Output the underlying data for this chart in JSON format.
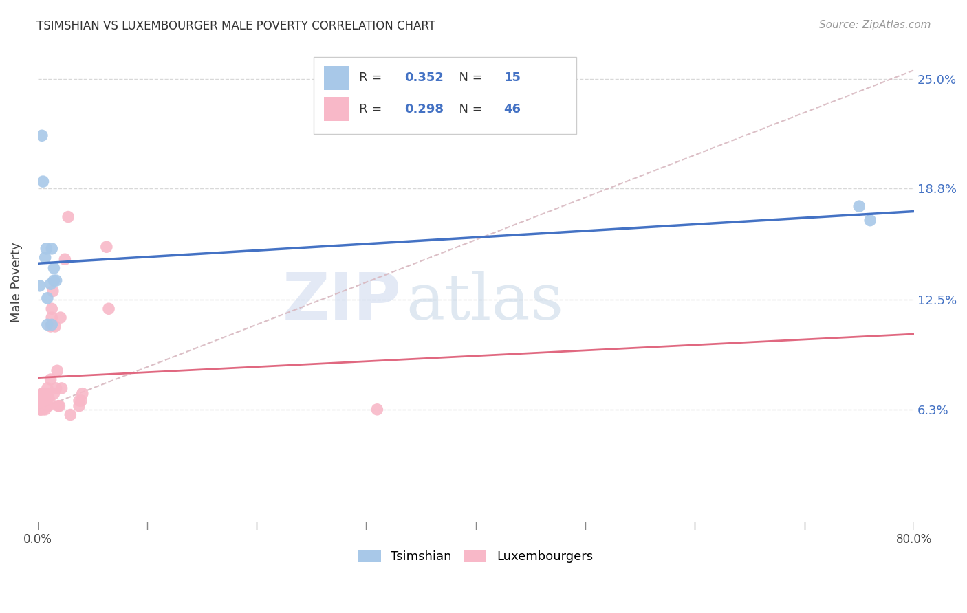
{
  "title": "TSIMSHIAN VS LUXEMBOURGER MALE POVERTY CORRELATION CHART",
  "source": "Source: ZipAtlas.com",
  "ylabel": "Male Poverty",
  "ytick_values": [
    0.063,
    0.125,
    0.188,
    0.25
  ],
  "ytick_labels": [
    "6.3%",
    "12.5%",
    "18.8%",
    "25.0%"
  ],
  "xmin": 0.0,
  "xmax": 0.8,
  "ymin": -0.005,
  "ymax": 0.275,
  "tsimshian_color": "#a8c8e8",
  "luxembourger_color": "#f8b8c8",
  "tsimshian_line_color": "#4472c4",
  "luxembourger_line_color": "#e06880",
  "dashed_line_color": "#d8b8c0",
  "watermark_zip": "ZIP",
  "watermark_atlas": "atlas",
  "tsimshian_R": "0.352",
  "tsimshian_N": "15",
  "luxembourger_R": "0.298",
  "luxembourger_N": "46",
  "tsimshian_x": [
    0.002,
    0.004,
    0.007,
    0.008,
    0.009,
    0.009,
    0.012,
    0.013,
    0.013,
    0.015,
    0.015,
    0.017,
    0.75,
    0.76,
    0.005
  ],
  "tsimshian_y": [
    0.133,
    0.218,
    0.149,
    0.154,
    0.126,
    0.111,
    0.134,
    0.154,
    0.111,
    0.136,
    0.143,
    0.136,
    0.178,
    0.17,
    0.192
  ],
  "luxembourger_x": [
    0.002,
    0.003,
    0.004,
    0.004,
    0.004,
    0.004,
    0.005,
    0.005,
    0.005,
    0.005,
    0.006,
    0.006,
    0.006,
    0.007,
    0.007,
    0.008,
    0.008,
    0.009,
    0.009,
    0.01,
    0.01,
    0.011,
    0.012,
    0.012,
    0.013,
    0.013,
    0.014,
    0.015,
    0.016,
    0.017,
    0.018,
    0.019,
    0.02,
    0.021,
    0.022,
    0.025,
    0.028,
    0.03,
    0.038,
    0.038,
    0.04,
    0.041,
    0.31,
    0.063,
    0.065,
    0.003
  ],
  "luxembourger_y": [
    0.063,
    0.063,
    0.065,
    0.065,
    0.068,
    0.072,
    0.063,
    0.065,
    0.068,
    0.072,
    0.065,
    0.068,
    0.072,
    0.063,
    0.07,
    0.068,
    0.072,
    0.065,
    0.075,
    0.065,
    0.07,
    0.068,
    0.08,
    0.11,
    0.115,
    0.12,
    0.13,
    0.072,
    0.11,
    0.075,
    0.085,
    0.065,
    0.065,
    0.115,
    0.075,
    0.148,
    0.172,
    0.06,
    0.065,
    0.068,
    0.068,
    0.072,
    0.063,
    0.155,
    0.12,
    0.063
  ],
  "background_color": "#ffffff",
  "grid_color": "#d8d8d8",
  "legend_text_color": "#4472c4",
  "legend_border_color": "#cccccc"
}
